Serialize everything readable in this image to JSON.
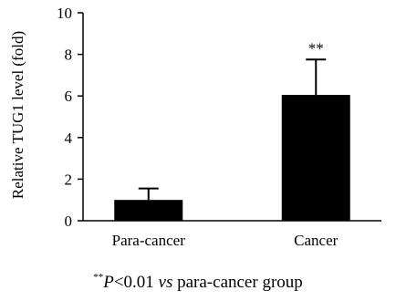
{
  "chart_data": {
    "type": "bar",
    "categories": [
      "Para-cancer",
      "Cancer"
    ],
    "values": [
      1.0,
      6.05
    ],
    "errors": [
      0.55,
      1.7
    ],
    "significance": [
      "",
      "**"
    ],
    "ylabel": "Relative TUG1 level (fold)",
    "xlabel": "",
    "ylim": [
      0,
      10
    ],
    "yticks": [
      0,
      2,
      4,
      6,
      8,
      10
    ],
    "bar_color": "#000000",
    "grid": false
  },
  "footnote": {
    "marker": "**",
    "p": "P",
    "threshold": "<0.01 ",
    "vs": "vs",
    "rest": " para-cancer group"
  }
}
